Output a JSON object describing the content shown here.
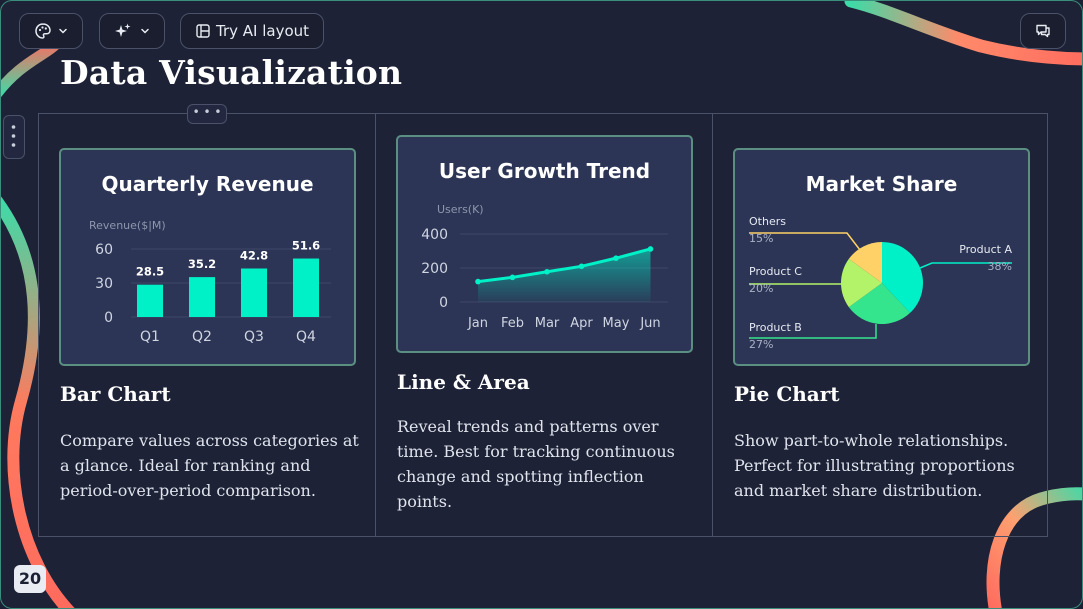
{
  "toolbar": {
    "theme_icon": "palette-icon",
    "ai_icon": "sparkle-icon",
    "try_ai_label": "Try AI layout",
    "comment_icon": "comment-icon"
  },
  "page": {
    "title": "Data Visualization",
    "page_number": "20"
  },
  "colors": {
    "accent": "#00f0c8",
    "background": "#1d2236",
    "card": "#2c3555",
    "decor_coral": "#ff6b5e",
    "decor_mint": "#3ddba8"
  },
  "sections": [
    {
      "heading": "Bar Chart",
      "description": "Compare values across categories at a glance. Ideal for ranking and period-over-period comparison."
    },
    {
      "heading": "Line & Area",
      "description": "Reveal trends and patterns over time. Best for tracking continuous change and spotting inflection points."
    },
    {
      "heading": "Pie Chart",
      "description": "Show part-to-whole relationships. Perfect for illustrating proportions and market share distribution."
    }
  ],
  "chart_data": [
    {
      "type": "bar",
      "title": "Quarterly Revenue",
      "ylabel": "Revenue($|M)",
      "categories": [
        "Q1",
        "Q2",
        "Q3",
        "Q4"
      ],
      "values": [
        28.5,
        35.2,
        42.8,
        51.6
      ],
      "data_labels": [
        "28.5",
        "35.2",
        "42.8",
        "51.6"
      ],
      "yticks": [
        "0",
        "30",
        "60"
      ],
      "ylim": [
        0,
        60
      ],
      "color": "#00f0c8"
    },
    {
      "type": "area",
      "title": "User Growth Trend",
      "ylabel": "Users(K)",
      "categories": [
        "Jan",
        "Feb",
        "Mar",
        "Apr",
        "May",
        "Jun"
      ],
      "values": [
        120,
        145,
        178,
        210,
        258,
        312
      ],
      "yticks": [
        "0",
        "200",
        "400"
      ],
      "ylim": [
        0,
        400
      ],
      "color": "#00f0c8"
    },
    {
      "type": "pie",
      "title": "Market Share",
      "slices": [
        {
          "name": "Product A",
          "value": 38,
          "label": "38%",
          "color": "#00f0c8"
        },
        {
          "name": "Product B",
          "value": 27,
          "label": "27%",
          "color": "#35e58e"
        },
        {
          "name": "Product C",
          "value": 20,
          "label": "20%",
          "color": "#b2f36a"
        },
        {
          "name": "Others",
          "value": 15,
          "label": "15%",
          "color": "#ffd166"
        }
      ]
    }
  ]
}
